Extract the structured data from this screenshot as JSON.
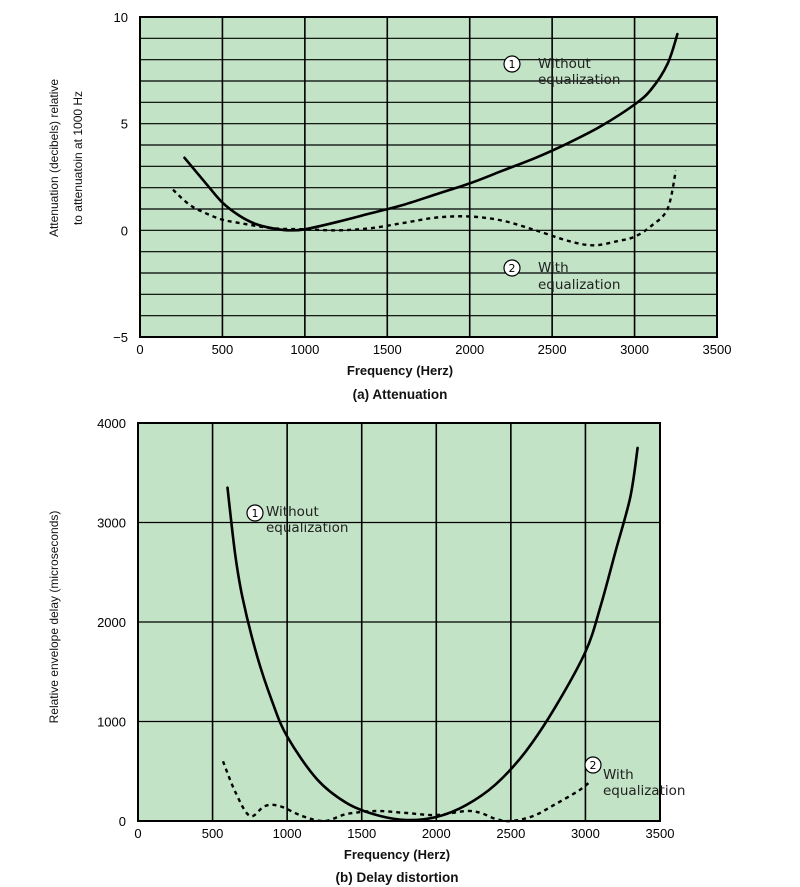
{
  "chart_data": [
    {
      "type": "line",
      "caption": "(a) Attenuation",
      "xlabel": "Frequency (Herz)",
      "ylabel_lines": [
        "Attenuation (decibels) relative",
        "to attenuatoin at 1000 Hz"
      ],
      "xlim": [
        0,
        3500
      ],
      "ylim": [
        -5,
        10
      ],
      "xticks": [
        0,
        500,
        1000,
        1500,
        2000,
        2500,
        3000,
        3500
      ],
      "yticks": [
        -5,
        0,
        5,
        10
      ],
      "grid": true,
      "series": [
        {
          "name": "Without equalization",
          "marker": "1",
          "style": "solid",
          "points": [
            [
              270,
              3.4
            ],
            [
              400,
              2.2
            ],
            [
              500,
              1.3
            ],
            [
              600,
              0.7
            ],
            [
              700,
              0.3
            ],
            [
              800,
              0.1
            ],
            [
              900,
              0.0
            ],
            [
              1000,
              0.05
            ],
            [
              1200,
              0.4
            ],
            [
              1400,
              0.8
            ],
            [
              1600,
              1.2
            ],
            [
              1800,
              1.7
            ],
            [
              2000,
              2.2
            ],
            [
              2200,
              2.8
            ],
            [
              2400,
              3.4
            ],
            [
              2600,
              4.1
            ],
            [
              2800,
              4.9
            ],
            [
              3000,
              5.9
            ],
            [
              3100,
              6.6
            ],
            [
              3200,
              7.8
            ],
            [
              3260,
              9.2
            ]
          ]
        },
        {
          "name": "With equalization",
          "marker": "2",
          "style": "dashed",
          "points": [
            [
              200,
              1.9
            ],
            [
              300,
              1.2
            ],
            [
              400,
              0.8
            ],
            [
              500,
              0.5
            ],
            [
              600,
              0.35
            ],
            [
              800,
              0.1
            ],
            [
              1000,
              0.05
            ],
            [
              1200,
              0.0
            ],
            [
              1400,
              0.1
            ],
            [
              1600,
              0.35
            ],
            [
              1800,
              0.6
            ],
            [
              2000,
              0.65
            ],
            [
              2200,
              0.45
            ],
            [
              2400,
              0.0
            ],
            [
              2600,
              -0.5
            ],
            [
              2750,
              -0.7
            ],
            [
              2900,
              -0.5
            ],
            [
              3000,
              -0.3
            ],
            [
              3100,
              0.2
            ],
            [
              3200,
              1.0
            ],
            [
              3250,
              2.8
            ]
          ]
        }
      ],
      "annotations": [
        {
          "marker": "1",
          "lines": [
            "Without",
            "equalization"
          ]
        },
        {
          "marker": "2",
          "lines": [
            "With",
            "equalization"
          ]
        }
      ]
    },
    {
      "type": "line",
      "caption": "(b) Delay distortion",
      "xlabel": "Frequency (Herz)",
      "ylabel_lines": [
        "Relative envelope delay (microseconds)"
      ],
      "xlim": [
        0,
        3500
      ],
      "ylim": [
        0,
        4000
      ],
      "xticks": [
        0,
        500,
        1000,
        1500,
        2000,
        2500,
        3000,
        3500
      ],
      "yticks": [
        0,
        1000,
        2000,
        3000,
        4000
      ],
      "grid": true,
      "series": [
        {
          "name": "Without equalization",
          "marker": "1",
          "style": "solid",
          "points": [
            [
              600,
              3350
            ],
            [
              650,
              2700
            ],
            [
              700,
              2250
            ],
            [
              800,
              1650
            ],
            [
              900,
              1200
            ],
            [
              1000,
              850
            ],
            [
              1200,
              420
            ],
            [
              1400,
              180
            ],
            [
              1600,
              60
            ],
            [
              1800,
              10
            ],
            [
              2000,
              40
            ],
            [
              2200,
              160
            ],
            [
              2400,
              370
            ],
            [
              2600,
              700
            ],
            [
              2800,
              1150
            ],
            [
              3000,
              1700
            ],
            [
              3100,
              2150
            ],
            [
              3200,
              2700
            ],
            [
              3300,
              3250
            ],
            [
              3350,
              3750
            ]
          ]
        },
        {
          "name": "With equalization",
          "marker": "2",
          "style": "dashed",
          "points": [
            [
              570,
              600
            ],
            [
              650,
              300
            ],
            [
              750,
              50
            ],
            [
              850,
              150
            ],
            [
              950,
              150
            ],
            [
              1100,
              50
            ],
            [
              1250,
              0
            ],
            [
              1400,
              70
            ],
            [
              1600,
              100
            ],
            [
              1800,
              80
            ],
            [
              2000,
              60
            ],
            [
              2200,
              100
            ],
            [
              2300,
              80
            ],
            [
              2400,
              20
            ],
            [
              2500,
              0
            ],
            [
              2650,
              50
            ],
            [
              2800,
              170
            ],
            [
              2950,
              300
            ],
            [
              3020,
              380
            ]
          ]
        }
      ],
      "annotations": [
        {
          "marker": "1",
          "lines": [
            "Without",
            "equalization"
          ]
        },
        {
          "marker": "2",
          "lines": [
            "With",
            "equalization"
          ]
        }
      ]
    }
  ]
}
